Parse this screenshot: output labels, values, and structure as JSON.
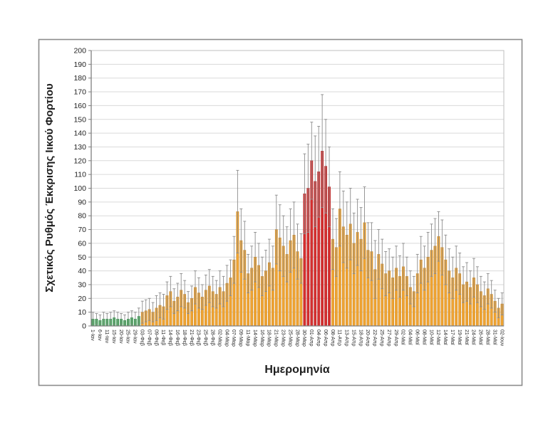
{
  "chart_data": {
    "type": "bar",
    "title": "",
    "xlabel": "Ημερομηνία",
    "ylabel": "Σχετικός Ρυθμός Έκκρισης Ιικού Φορτίου",
    "ylim": [
      0,
      200
    ],
    "ytick_step": 10,
    "grid": true,
    "legend_position": "none",
    "error_bars": "symmetric",
    "label_every": 2,
    "tick_labels": [
      "1-Ιαν",
      "6-Ιαν",
      "11-Ιαν",
      "15-Ιαν",
      "20-Ιαν",
      "25-Ιαν",
      "29-Ιαν",
      "03-Φεβ",
      "07-Φεβ",
      "09-Φεβ",
      "11-Φεβ",
      "14-Φεβ",
      "16-Φεβ",
      "18-Φεβ",
      "21-Φεβ",
      "23-Φεβ",
      "25-Φεβ",
      "28-Φεβ",
      "02-Μαρ",
      "04-Μαρ",
      "07-Μαρ",
      "09-Μαρ",
      "11-Μαρ",
      "14-Μαρ",
      "16-Μαρ",
      "18-Μαρ",
      "21-Μαρ",
      "23-Μαρ",
      "25-Μαρ",
      "28-Μαρ",
      "30-Μαρ",
      "01-Απρ",
      "04-Απρ",
      "06-Απρ",
      "08-Απρ",
      "11-Απρ",
      "13-Απρ",
      "15-Απρ",
      "18-Απρ",
      "20-Απρ",
      "22-Απρ",
      "25-Απρ",
      "27-Απρ",
      "29-Απρ",
      "02-Μαϊ",
      "04-Μαϊ",
      "06-Μαϊ",
      "08-Μαϊ",
      "10-Μαϊ",
      "12-Μαϊ",
      "14-Μαϊ",
      "17-Μαϊ",
      "19-Μαϊ",
      "21-Μαϊ",
      "24-Μαϊ",
      "26-Μαϊ",
      "28-Μαϊ",
      "31-Μαϊ",
      "02-Ιουν"
    ],
    "values": [
      5,
      5,
      4,
      5,
      5,
      5,
      6,
      5,
      5,
      4,
      5,
      6,
      5,
      7,
      10,
      11,
      12,
      10,
      13,
      15,
      14,
      22,
      25,
      18,
      21,
      26,
      23,
      17,
      20,
      28,
      24,
      21,
      26,
      29,
      25,
      23,
      28,
      25,
      31,
      35,
      48,
      83,
      62,
      55,
      38,
      42,
      50,
      44,
      36,
      40,
      46,
      42,
      70,
      64,
      58,
      52,
      62,
      66,
      54,
      49,
      96,
      100,
      120,
      105,
      112,
      127,
      116,
      101,
      63,
      57,
      85,
      72,
      66,
      74,
      60,
      68,
      63,
      75,
      55,
      54,
      41,
      52,
      45,
      38,
      40,
      35,
      42,
      36,
      43,
      36,
      28,
      25,
      38,
      48,
      42,
      50,
      55,
      58,
      65,
      57,
      48,
      40,
      35,
      42,
      38,
      30,
      32,
      28,
      35,
      30,
      25,
      22,
      27,
      23,
      18,
      13,
      16
    ],
    "err_top": [
      10,
      9,
      8,
      10,
      9,
      10,
      11,
      10,
      9,
      8,
      10,
      11,
      10,
      13,
      18,
      19,
      20,
      17,
      22,
      24,
      23,
      32,
      36,
      27,
      31,
      38,
      33,
      25,
      29,
      40,
      35,
      30,
      37,
      41,
      36,
      33,
      40,
      36,
      44,
      48,
      65,
      113,
      85,
      76,
      52,
      58,
      68,
      60,
      50,
      55,
      63,
      58,
      95,
      88,
      80,
      72,
      85,
      90,
      74,
      67,
      125,
      132,
      148,
      138,
      145,
      168,
      150,
      130,
      85,
      78,
      112,
      98,
      90,
      100,
      82,
      92,
      86,
      101,
      75,
      75,
      62,
      70,
      63,
      54,
      56,
      50,
      58,
      51,
      60,
      50,
      40,
      36,
      52,
      65,
      58,
      68,
      74,
      78,
      83,
      77,
      66,
      56,
      50,
      58,
      53,
      43,
      46,
      40,
      49,
      43,
      36,
      32,
      38,
      33,
      26,
      20,
      24
    ],
    "groups": [
      {
        "start": 0,
        "end": 13,
        "color_key": "green"
      },
      {
        "start": 14,
        "end": 59,
        "color_key": "orange"
      },
      {
        "start": 60,
        "end": 67,
        "color_key": "red"
      },
      {
        "start": 68,
        "end": 116,
        "color_key": "orange"
      }
    ]
  },
  "colors": {
    "green": "#45AD5B",
    "green_edge": "#2F8F49",
    "orange": "#F0A432",
    "orange_edge": "#C8831F",
    "red": "#D62F2F",
    "red_edge": "#A92121",
    "error_bar": "#8C8C8C",
    "grid": "#DADADA",
    "plot_border": "#BFBFBF",
    "axis": "#7F7F7F",
    "text": "#1F1F1F",
    "frame": "#8C8C8C"
  }
}
